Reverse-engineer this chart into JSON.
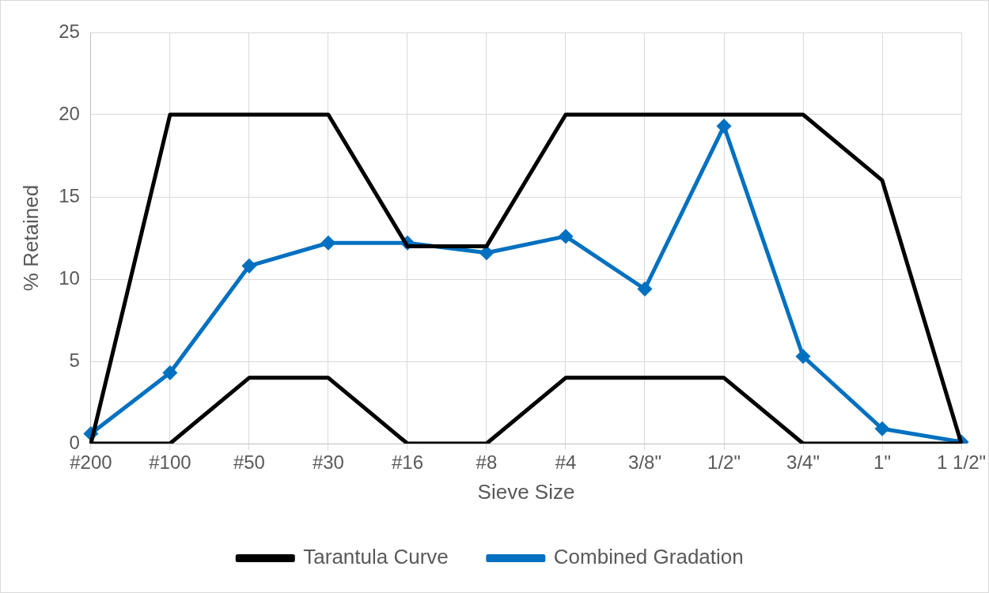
{
  "chart_data": {
    "type": "line",
    "xlabel": "Sieve Size",
    "ylabel": "% Retained",
    "categories": [
      "#200",
      "#100",
      "#50",
      "#30",
      "#16",
      "#8",
      "#4",
      "3/8\"",
      "1/2\"",
      "3/4\"",
      "1\"",
      "1 1/2\""
    ],
    "series": [
      {
        "name": "Tarantula Curve",
        "color": "#000000",
        "marker": "none",
        "values": [
          0,
          20,
          20,
          20,
          12,
          12,
          20,
          20,
          20,
          20,
          16,
          0
        ]
      },
      {
        "color": "#000000",
        "marker": "none",
        "values": [
          0,
          0,
          4,
          4,
          0,
          0,
          4,
          4,
          4,
          0,
          0,
          0
        ]
      },
      {
        "name": "Combined Gradation",
        "color": "#0070c0",
        "marker": "diamond",
        "values": [
          0.6,
          4.3,
          10.8,
          12.2,
          12.2,
          11.6,
          12.6,
          9.4,
          19.3,
          5.3,
          0.9,
          0.1
        ]
      }
    ],
    "ylim": [
      0,
      25
    ],
    "yticks": [
      0,
      5,
      10,
      15,
      20,
      25
    ],
    "grid": true,
    "legend": "bottom",
    "line_style": "solid"
  }
}
